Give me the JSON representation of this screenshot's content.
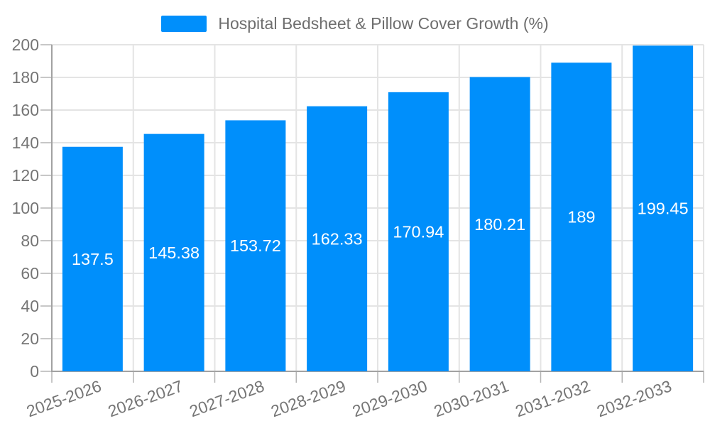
{
  "chart_data": {
    "type": "bar",
    "title": "Hospital Bedsheet & Pillow Cover Growth (%)",
    "categories": [
      "2025-2026",
      "2026-2027",
      "2027-2028",
      "2028-2029",
      "2029-2030",
      "2030-2031",
      "2031-2032",
      "2032-2033"
    ],
    "values": [
      137.5,
      145.38,
      153.72,
      162.33,
      170.94,
      180.21,
      189,
      199.45
    ],
    "value_labels": [
      "137.5",
      "145.38",
      "153.72",
      "162.33",
      "170.94",
      "180.21",
      "189",
      "199.45"
    ],
    "xlabel": "",
    "ylabel": "",
    "ylim": [
      0,
      200
    ],
    "ytick_step": 20,
    "grid": true,
    "legend_position": "top"
  },
  "colors": {
    "bar": "#008FFB",
    "grid": "#e4e4e4",
    "axis": "#a2a2a2",
    "tick": "#b4b4b4",
    "tick_label": "#757575",
    "legend_text": "#6e6e6e",
    "value_label": "#ffffff",
    "background": "#ffffff"
  }
}
